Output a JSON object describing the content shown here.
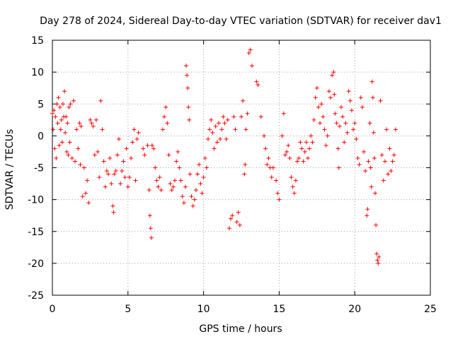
{
  "chart_data": {
    "type": "scatter",
    "title": "Day 278 of 2024, Sidereal Day-to-day VTEC variation (SDTVAR) for receiver dav1",
    "xlabel": "GPS time / hours",
    "ylabel": "SDTVAR / TECUs",
    "xlim": [
      0,
      25
    ],
    "ylim": [
      -25,
      15
    ],
    "xticks": [
      0,
      5,
      10,
      15,
      20,
      25
    ],
    "yticks": [
      -25,
      -20,
      -15,
      -10,
      -5,
      0,
      5,
      10,
      15
    ],
    "xtick_labels": [
      "0",
      "5",
      "10",
      "15",
      "20",
      "25"
    ],
    "ytick_labels": [
      "-25",
      "-20",
      "-15",
      "-10",
      "-5",
      "0",
      "5",
      "10",
      "15"
    ],
    "grid": true,
    "marker": "+",
    "color": "#ff0000",
    "series": [
      {
        "name": "SDTVAR",
        "points": [
          [
            0.0,
            3.5
          ],
          [
            0.05,
            1.0
          ],
          [
            0.1,
            4.0
          ],
          [
            0.15,
            -2.0
          ],
          [
            0.2,
            3.0
          ],
          [
            0.25,
            -3.5
          ],
          [
            0.3,
            5.0
          ],
          [
            0.35,
            2.0
          ],
          [
            0.4,
            6.0
          ],
          [
            0.45,
            -1.5
          ],
          [
            0.5,
            4.5
          ],
          [
            0.55,
            1.0
          ],
          [
            0.6,
            2.5
          ],
          [
            0.65,
            -1.0
          ],
          [
            0.7,
            5.0
          ],
          [
            0.75,
            3.0
          ],
          [
            0.8,
            7.0
          ],
          [
            0.85,
            0.5
          ],
          [
            0.9,
            3.0
          ],
          [
            0.95,
            -2.5
          ],
          [
            1.0,
            2.0
          ],
          [
            1.05,
            -3.0
          ],
          [
            1.1,
            4.5
          ],
          [
            1.15,
            -1.0
          ],
          [
            1.2,
            5.0
          ],
          [
            1.3,
            -3.5
          ],
          [
            1.4,
            5.5
          ],
          [
            1.5,
            -4.0
          ],
          [
            1.6,
            1.0
          ],
          [
            1.7,
            -2.0
          ],
          [
            1.8,
            2.0
          ],
          [
            1.85,
            -4.5
          ],
          [
            1.9,
            1.5
          ],
          [
            2.0,
            -9.5
          ],
          [
            2.1,
            -5.0
          ],
          [
            2.2,
            -9.0
          ],
          [
            2.3,
            -7.0
          ],
          [
            2.4,
            -10.5
          ],
          [
            2.5,
            2.5
          ],
          [
            2.6,
            2.0
          ],
          [
            2.7,
            1.5
          ],
          [
            2.8,
            -3.0
          ],
          [
            2.9,
            2.5
          ],
          [
            3.0,
            -2.5
          ],
          [
            3.1,
            -6.5
          ],
          [
            3.2,
            5.5
          ],
          [
            3.3,
            1.0
          ],
          [
            3.4,
            -4.0
          ],
          [
            3.5,
            -8.0
          ],
          [
            3.6,
            -5.5
          ],
          [
            3.7,
            -6.0
          ],
          [
            3.8,
            -3.5
          ],
          [
            3.9,
            -7.5
          ],
          [
            4.0,
            -11.0
          ],
          [
            4.05,
            -12.0
          ],
          [
            4.1,
            -6.0
          ],
          [
            4.2,
            -5.5
          ],
          [
            4.3,
            -3.0
          ],
          [
            4.4,
            -0.5
          ],
          [
            4.5,
            -7.5
          ],
          [
            4.6,
            -5.5
          ],
          [
            4.7,
            -4.0
          ],
          [
            4.8,
            -6.5
          ],
          [
            4.9,
            -2.0
          ],
          [
            5.0,
            -8.0
          ],
          [
            5.1,
            -6.5
          ],
          [
            5.2,
            -3.5
          ],
          [
            5.3,
            -1.0
          ],
          [
            5.4,
            1.0
          ],
          [
            5.5,
            -7.0
          ],
          [
            5.6,
            -0.5
          ],
          [
            5.7,
            0.5
          ],
          [
            6.0,
            -2.0
          ],
          [
            6.1,
            -3.0
          ],
          [
            6.3,
            -1.5
          ],
          [
            6.4,
            -8.5
          ],
          [
            6.45,
            -12.5
          ],
          [
            6.5,
            -14.5
          ],
          [
            6.55,
            -16.0
          ],
          [
            6.6,
            -1.5
          ],
          [
            6.7,
            -2.0
          ],
          [
            6.8,
            -5.0
          ],
          [
            6.9,
            -7.0
          ],
          [
            7.0,
            -8.0
          ],
          [
            7.1,
            -6.5
          ],
          [
            7.2,
            -8.5
          ],
          [
            7.3,
            1.0
          ],
          [
            7.4,
            3.0
          ],
          [
            7.5,
            4.5
          ],
          [
            7.6,
            2.0
          ],
          [
            7.7,
            -3.0
          ],
          [
            7.8,
            -7.5
          ],
          [
            7.9,
            -8.5
          ],
          [
            8.0,
            -8.0
          ],
          [
            8.1,
            -7.0
          ],
          [
            8.2,
            -4.0
          ],
          [
            8.3,
            -2.5
          ],
          [
            8.4,
            -5.0
          ],
          [
            8.5,
            -7.0
          ],
          [
            8.6,
            -9.5
          ],
          [
            8.7,
            -10.5
          ],
          [
            8.8,
            -8.0
          ],
          [
            8.85,
            11.0
          ],
          [
            8.9,
            9.5
          ],
          [
            8.95,
            7.5
          ],
          [
            9.0,
            4.5
          ],
          [
            9.05,
            2.5
          ],
          [
            9.1,
            -6.0
          ],
          [
            9.2,
            -9.5
          ],
          [
            9.3,
            -11.0
          ],
          [
            9.4,
            -10.0
          ],
          [
            9.5,
            -8.5
          ],
          [
            9.6,
            -6.0
          ],
          [
            9.7,
            -4.5
          ],
          [
            9.8,
            -7.5
          ],
          [
            9.9,
            -9.0
          ],
          [
            10.0,
            -6.5
          ],
          [
            10.1,
            -3.5
          ],
          [
            10.2,
            -5.0
          ],
          [
            10.3,
            -0.5
          ],
          [
            10.4,
            1.0
          ],
          [
            10.5,
            2.5
          ],
          [
            10.6,
            0.5
          ],
          [
            10.7,
            -2.0
          ],
          [
            10.8,
            1.5
          ],
          [
            10.9,
            -1.0
          ],
          [
            11.0,
            2.0
          ],
          [
            11.1,
            -0.5
          ],
          [
            11.2,
            1.0
          ],
          [
            11.3,
            3.0
          ],
          [
            11.4,
            2.0
          ],
          [
            11.5,
            -0.5
          ],
          [
            11.6,
            2.5
          ],
          [
            11.7,
            -14.5
          ],
          [
            11.8,
            -13.0
          ],
          [
            11.9,
            -12.5
          ],
          [
            12.0,
            3.0
          ],
          [
            12.1,
            1.0
          ],
          [
            12.2,
            -13.5
          ],
          [
            12.3,
            -12.0
          ],
          [
            12.4,
            -14.0
          ],
          [
            12.5,
            3.0
          ],
          [
            12.6,
            5.5
          ],
          [
            12.7,
            -6.0
          ],
          [
            12.75,
            -4.5
          ],
          [
            12.8,
            1.0
          ],
          [
            12.9,
            3.5
          ],
          [
            13.0,
            13.0
          ],
          [
            13.1,
            13.5
          ],
          [
            13.2,
            11.0
          ],
          [
            13.5,
            8.5
          ],
          [
            13.6,
            8.0
          ],
          [
            13.8,
            3.0
          ],
          [
            14.0,
            0.0
          ],
          [
            14.1,
            -2.0
          ],
          [
            14.2,
            -4.5
          ],
          [
            14.3,
            -3.5
          ],
          [
            14.4,
            -5.0
          ],
          [
            14.5,
            -6.5
          ],
          [
            14.6,
            -5.0
          ],
          [
            14.8,
            -7.0
          ],
          [
            14.9,
            -9.0
          ],
          [
            15.0,
            -10.0
          ],
          [
            15.2,
            0.0
          ],
          [
            15.3,
            3.5
          ],
          [
            15.4,
            -3.0
          ],
          [
            15.5,
            -2.5
          ],
          [
            15.6,
            -1.5
          ],
          [
            15.7,
            -3.5
          ],
          [
            15.8,
            -6.5
          ],
          [
            15.9,
            -8.0
          ],
          [
            16.0,
            -9.0
          ],
          [
            16.1,
            -7.0
          ],
          [
            16.2,
            -4.0
          ],
          [
            16.3,
            -3.5
          ],
          [
            16.4,
            -1.0
          ],
          [
            16.5,
            -2.0
          ],
          [
            16.6,
            -4.0
          ],
          [
            16.7,
            -2.5
          ],
          [
            16.8,
            -1.0
          ],
          [
            16.9,
            -3.5
          ],
          [
            17.0,
            -2.0
          ],
          [
            17.1,
            0.0
          ],
          [
            17.2,
            -1.0
          ],
          [
            17.3,
            2.5
          ],
          [
            17.4,
            6.0
          ],
          [
            17.5,
            7.5
          ],
          [
            17.6,
            4.5
          ],
          [
            17.7,
            2.0
          ],
          [
            17.8,
            5.0
          ],
          [
            17.9,
            3.0
          ],
          [
            18.0,
            1.0
          ],
          [
            18.1,
            -1.5
          ],
          [
            18.2,
            0.0
          ],
          [
            18.3,
            7.0
          ],
          [
            18.4,
            6.0
          ],
          [
            18.5,
            9.5
          ],
          [
            18.6,
            10.0
          ],
          [
            18.65,
            6.5
          ],
          [
            18.7,
            3.5
          ],
          [
            18.8,
            2.0
          ],
          [
            18.9,
            -2.0
          ],
          [
            18.95,
            -5.0
          ],
          [
            19.0,
            1.5
          ],
          [
            19.1,
            4.5
          ],
          [
            19.2,
            3.0
          ],
          [
            19.3,
            -1.0
          ],
          [
            19.4,
            2.0
          ],
          [
            19.5,
            0.5
          ],
          [
            19.6,
            7.0
          ],
          [
            19.7,
            5.5
          ],
          [
            19.8,
            4.0
          ],
          [
            19.9,
            1.0
          ],
          [
            20.0,
            2.0
          ],
          [
            20.1,
            -0.5
          ],
          [
            20.2,
            -3.5
          ],
          [
            20.3,
            -4.5
          ],
          [
            20.4,
            6.0
          ],
          [
            20.5,
            4.5
          ],
          [
            20.6,
            -2.5
          ],
          [
            20.7,
            -5.5
          ],
          [
            20.8,
            -12.5
          ],
          [
            20.85,
            -11.5
          ],
          [
            20.9,
            -4.0
          ],
          [
            21.0,
            2.0
          ],
          [
            21.05,
            -5.0
          ],
          [
            21.1,
            -8.0
          ],
          [
            21.15,
            8.5
          ],
          [
            21.2,
            6.0
          ],
          [
            21.25,
            0.5
          ],
          [
            21.3,
            -3.5
          ],
          [
            21.35,
            -9.0
          ],
          [
            21.4,
            -14.0
          ],
          [
            21.45,
            -18.5
          ],
          [
            21.5,
            -19.5
          ],
          [
            21.55,
            -20.0
          ],
          [
            21.6,
            -19.0
          ],
          [
            21.7,
            5.5
          ],
          [
            21.8,
            -3.0
          ],
          [
            21.9,
            -7.0
          ],
          [
            22.0,
            -4.0
          ],
          [
            22.1,
            1.0
          ],
          [
            22.2,
            -6.0
          ],
          [
            22.3,
            -2.0
          ],
          [
            22.4,
            -5.5
          ],
          [
            22.5,
            -4.0
          ],
          [
            22.6,
            -3.0
          ],
          [
            22.7,
            1.0
          ]
        ]
      }
    ]
  }
}
